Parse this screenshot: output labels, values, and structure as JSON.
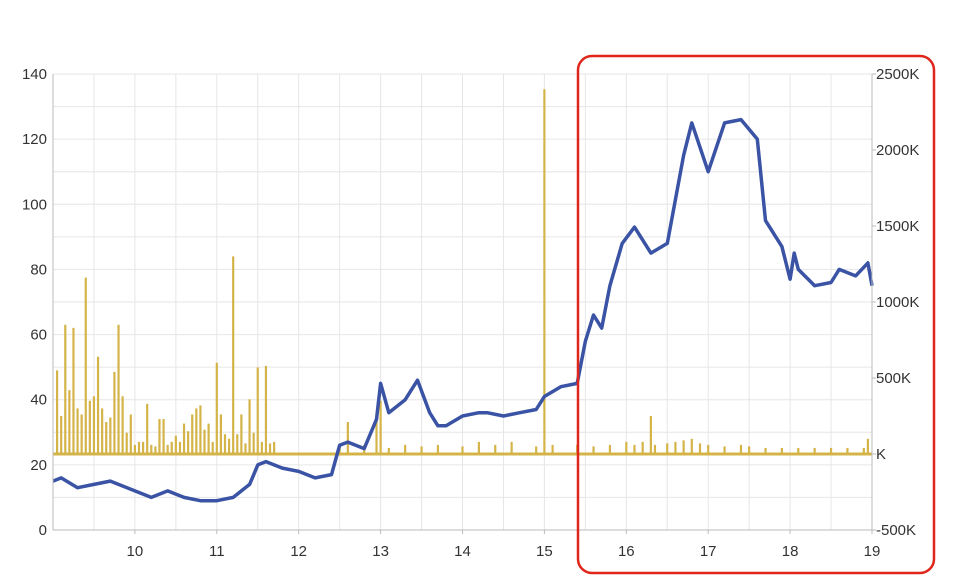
{
  "chart_data": {
    "type": "line",
    "title": "",
    "xlabel": "",
    "ylabel": "",
    "grid": true,
    "x_ticks": [
      "10",
      "11",
      "12",
      "13",
      "14",
      "15",
      "16",
      "17",
      "18",
      "19"
    ],
    "y_left_ticks": [
      "0",
      "20",
      "40",
      "60",
      "80",
      "100",
      "120",
      "140"
    ],
    "y_right_ticks": [
      "-500K",
      "K",
      "500K",
      "1000K",
      "1500K",
      "2000K",
      "2500K"
    ],
    "xlim": [
      9.0,
      19.0
    ],
    "ylim_left": [
      0,
      140
    ],
    "ylim_right": [
      -500,
      2500
    ],
    "colors": {
      "price": "#3a53a4",
      "volume": "#d4b448",
      "highlight": "#e0251b",
      "grid": "#e6e6e6"
    },
    "series": [
      {
        "axis": "left",
        "x": [
          9.0,
          9.1,
          9.3,
          9.5,
          9.7,
          9.8,
          10.0,
          10.2,
          10.4,
          10.6,
          10.8,
          11.0,
          11.2,
          11.4,
          11.5,
          11.6,
          11.8,
          12.0,
          12.2,
          12.4,
          12.5,
          12.6,
          12.8,
          12.95,
          13.0,
          13.1,
          13.3,
          13.45,
          13.6,
          13.7,
          13.8,
          14.0,
          14.2,
          14.3,
          14.5,
          14.7,
          14.9,
          15.0,
          15.2,
          15.4,
          15.5,
          15.6,
          15.7,
          15.8,
          15.95,
          16.1,
          16.3,
          16.5,
          16.7,
          16.8,
          17.0,
          17.2,
          17.4,
          17.6,
          17.7,
          17.9,
          18.0,
          18.05,
          18.1,
          18.3,
          18.5,
          18.6,
          18.8,
          18.95,
          19.0
        ],
        "values": [
          15,
          16,
          13,
          14,
          15,
          14,
          12,
          10,
          12,
          10,
          9,
          9,
          10,
          14,
          20,
          21,
          19,
          18,
          16,
          17,
          26,
          27,
          25,
          34,
          45,
          36,
          40,
          46,
          36,
          32,
          32,
          35,
          36,
          36,
          35,
          36,
          37,
          41,
          44,
          45,
          58,
          66,
          62,
          75,
          88,
          93,
          85,
          88,
          115,
          125,
          110,
          125,
          126,
          120,
          95,
          87,
          77,
          85,
          80,
          75,
          76,
          80,
          78,
          82,
          75
        ]
      },
      {
        "axis": "right",
        "type": "bar",
        "x": [
          9.05,
          9.1,
          9.15,
          9.2,
          9.25,
          9.3,
          9.35,
          9.4,
          9.45,
          9.5,
          9.55,
          9.6,
          9.65,
          9.7,
          9.75,
          9.8,
          9.85,
          9.9,
          9.95,
          10.0,
          10.05,
          10.1,
          10.15,
          10.2,
          10.25,
          10.3,
          10.35,
          10.4,
          10.45,
          10.5,
          10.55,
          10.6,
          10.65,
          10.7,
          10.75,
          10.8,
          10.85,
          10.9,
          10.95,
          11.0,
          11.05,
          11.1,
          11.15,
          11.2,
          11.25,
          11.3,
          11.35,
          11.4,
          11.45,
          11.5,
          11.55,
          11.6,
          11.65,
          11.7,
          12.5,
          12.6,
          12.8,
          12.95,
          13.0,
          13.1,
          13.3,
          13.5,
          13.7,
          14.0,
          14.2,
          14.4,
          14.6,
          14.9,
          15.0,
          15.1,
          15.4,
          15.6,
          15.8,
          16.0,
          16.1,
          16.2,
          16.3,
          16.35,
          16.5,
          16.6,
          16.7,
          16.8,
          16.9,
          17.0,
          17.2,
          17.4,
          17.5,
          17.7,
          17.9,
          18.1,
          18.3,
          18.5,
          18.7,
          18.9,
          18.95
        ],
        "values": [
          550,
          250,
          850,
          420,
          830,
          300,
          260,
          1160,
          350,
          380,
          640,
          300,
          210,
          240,
          540,
          850,
          380,
          140,
          260,
          60,
          80,
          80,
          330,
          60,
          50,
          230,
          230,
          60,
          80,
          120,
          80,
          200,
          150,
          260,
          300,
          320,
          160,
          200,
          80,
          600,
          260,
          130,
          100,
          1300,
          130,
          260,
          70,
          360,
          140,
          570,
          80,
          580,
          70,
          80,
          60,
          210,
          60,
          250,
          350,
          40,
          60,
          50,
          60,
          50,
          80,
          60,
          80,
          50,
          2400,
          60,
          60,
          50,
          60,
          80,
          60,
          80,
          250,
          60,
          70,
          80,
          90,
          100,
          70,
          60,
          50,
          60,
          50,
          40,
          40,
          40,
          40,
          40,
          40,
          40,
          100
        ]
      }
    ]
  }
}
